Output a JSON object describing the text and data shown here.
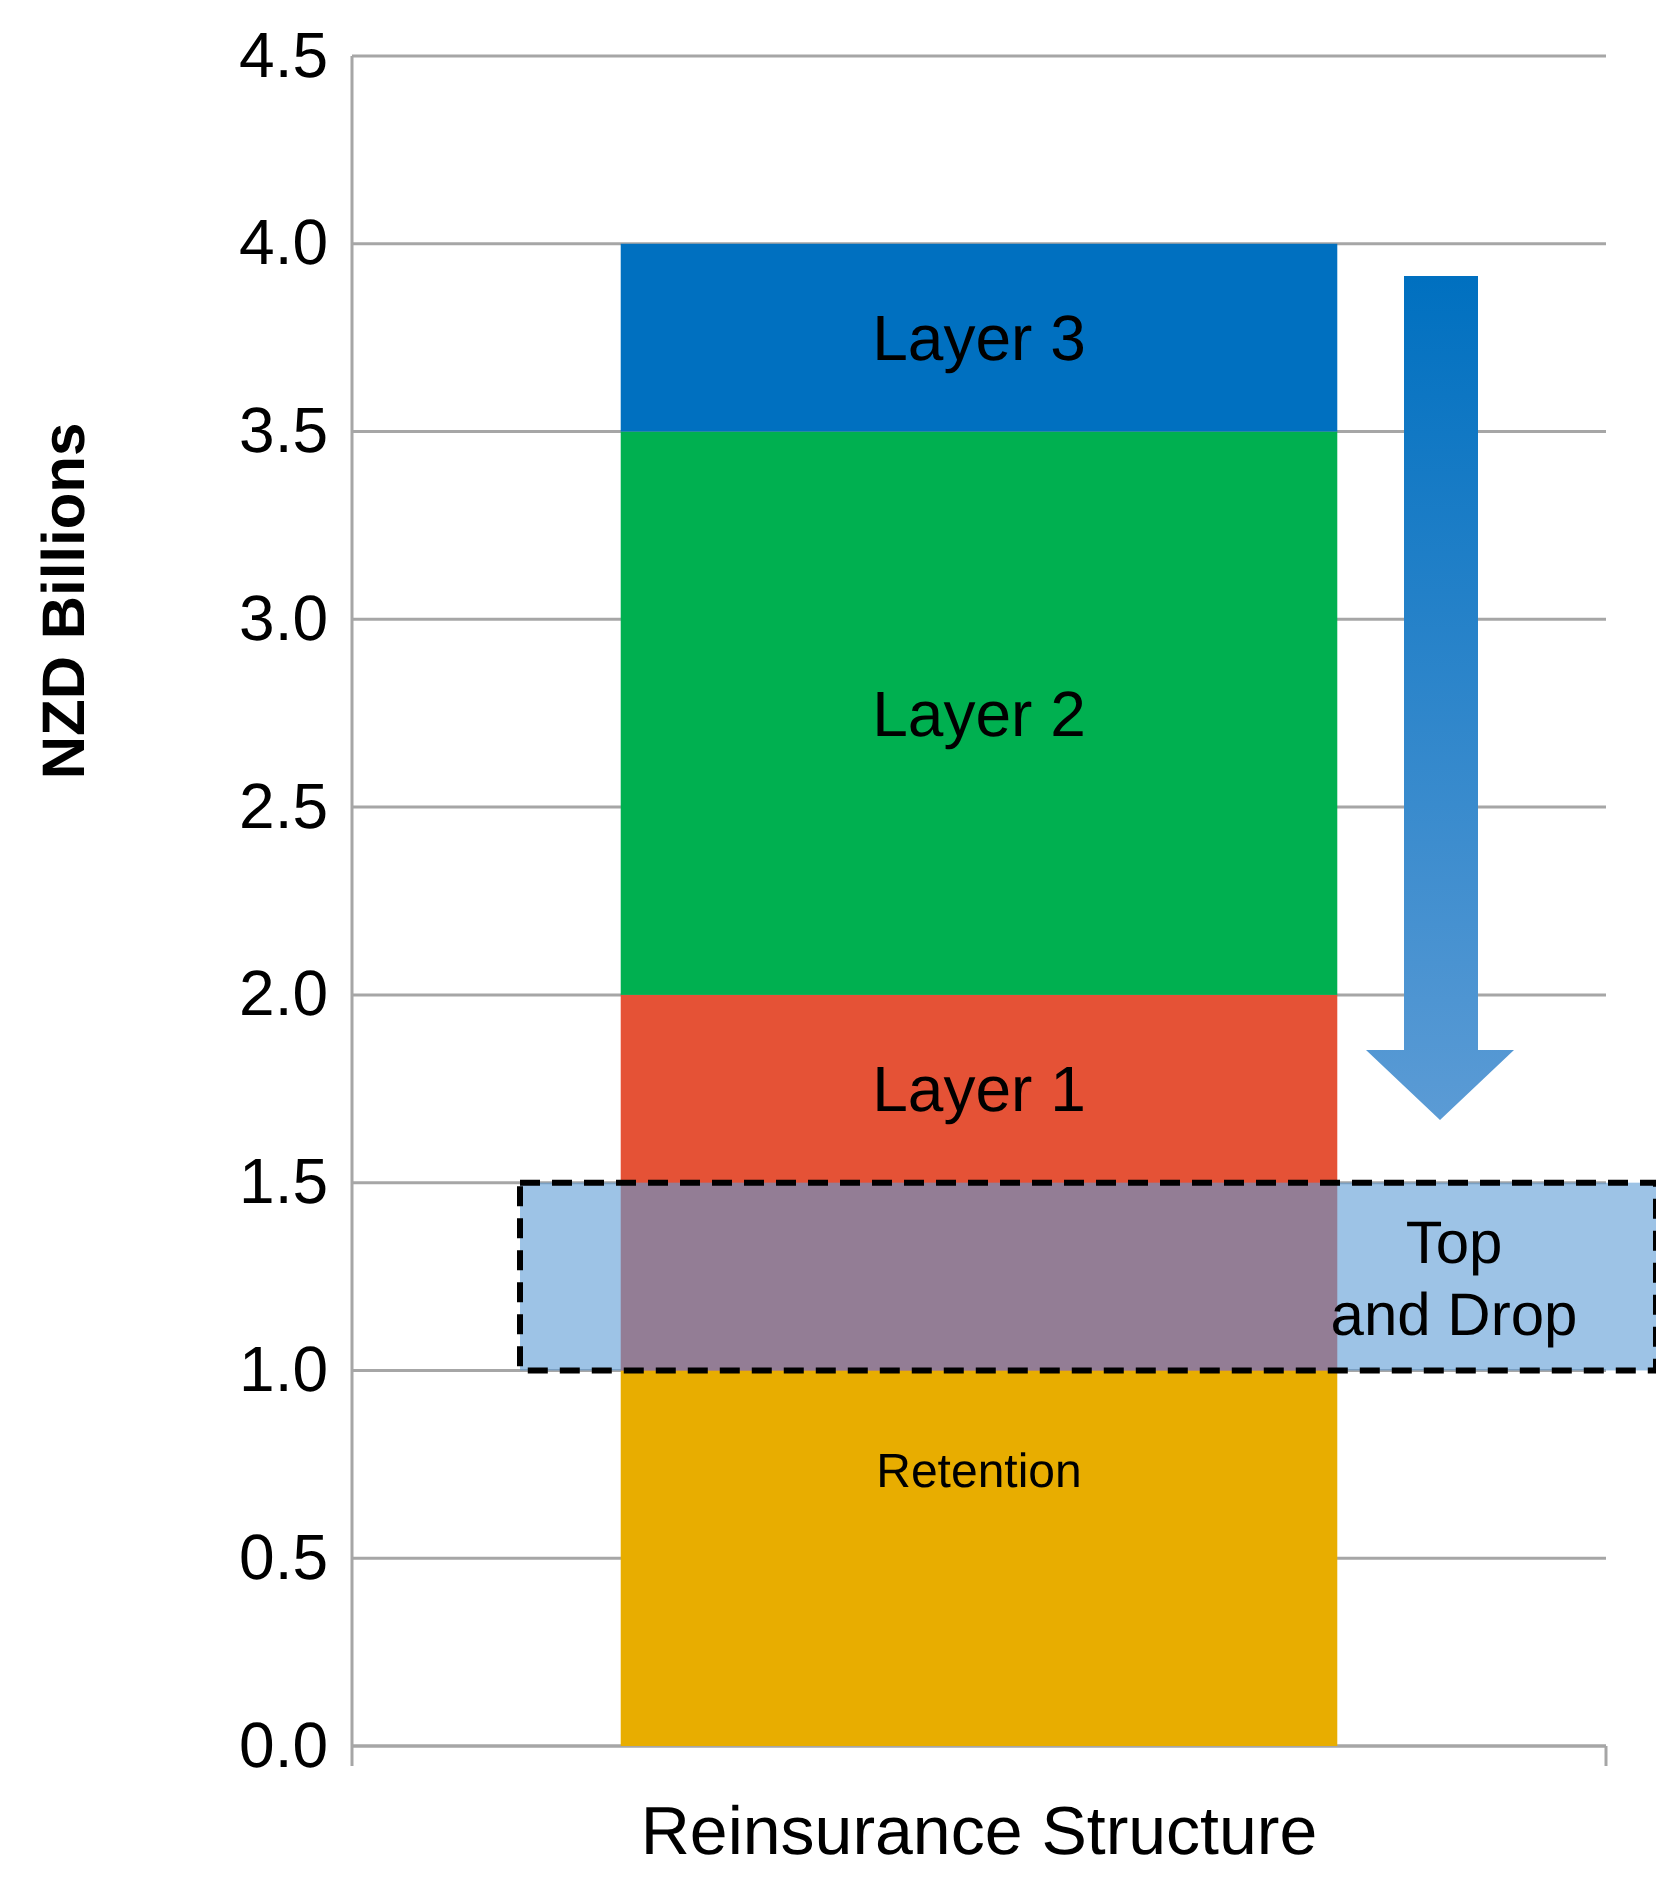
{
  "chart_data": {
    "type": "bar",
    "stacked": true,
    "ylabel": "NZD Billions",
    "categories": [
      "Reinsurance Structure"
    ],
    "series": [
      {
        "name": "Retention",
        "color": "#e8ad00",
        "values": [
          1.0
        ]
      },
      {
        "name": "Layer 1",
        "color": "#e55236",
        "values": [
          1.0
        ]
      },
      {
        "name": "Layer 2",
        "color": "#00b050",
        "values": [
          1.5
        ]
      },
      {
        "name": "Layer 3",
        "color": "#0070c0",
        "values": [
          0.5
        ]
      }
    ],
    "ylim": [
      0,
      4.5
    ],
    "yticks": [
      {
        "value": 0,
        "label": "0.0"
      },
      {
        "value": 0.5,
        "label": "0.5"
      },
      {
        "value": 1,
        "label": "1.0"
      },
      {
        "value": 1.5,
        "label": "1.5"
      },
      {
        "value": 2,
        "label": "2.0"
      },
      {
        "value": 2.5,
        "label": "2.5"
      },
      {
        "value": 3,
        "label": "3.0"
      },
      {
        "value": 3.5,
        "label": "3.5"
      },
      {
        "value": 4,
        "label": "4.0"
      },
      {
        "value": 4.5,
        "label": "4.5"
      }
    ],
    "grid": "y",
    "bands": [
      {
        "axis": "y",
        "from": 1.0,
        "to": 1.5,
        "label": "Top and Drop",
        "color": "#5b9bd5"
      }
    ]
  }
}
